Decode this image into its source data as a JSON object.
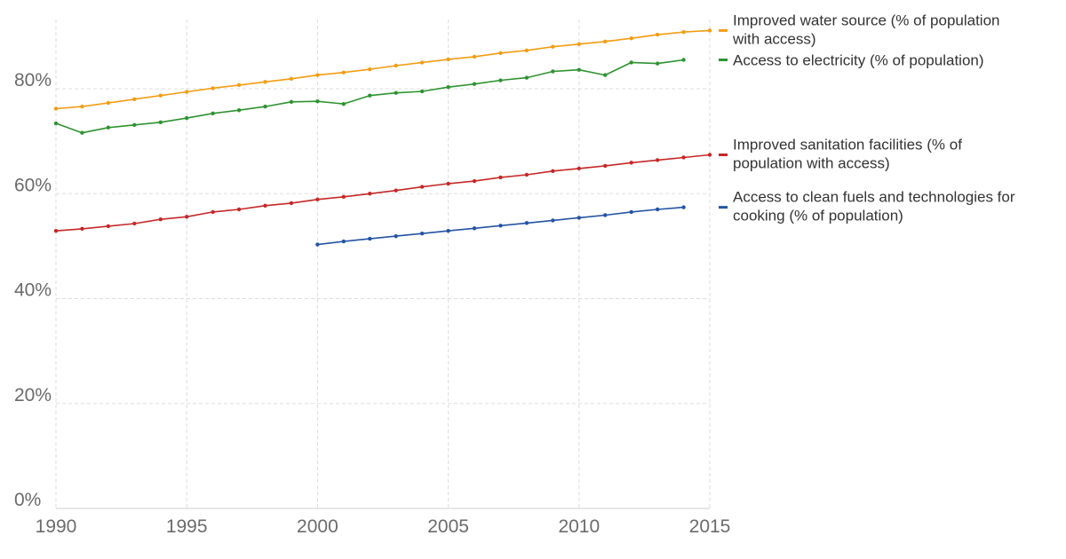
{
  "chart_data": {
    "type": "line",
    "title": "",
    "xlabel": "",
    "ylabel": "",
    "xlim": [
      1990,
      2015
    ],
    "ylim": [
      0,
      90
    ],
    "x_ticks": [
      "1990",
      "1995",
      "2000",
      "2005",
      "2010",
      "2015"
    ],
    "y_ticks": [
      "0%",
      "20%",
      "40%",
      "60%",
      "80%"
    ],
    "grid": true,
    "legend_position": "right",
    "series": [
      {
        "name": "Improved water source (% of population with access)",
        "legend_lines": [
          "Improved water source (% of population",
          "with access)"
        ],
        "color": "#f39c12",
        "x": [
          1990,
          1991,
          1992,
          1993,
          1994,
          1995,
          1996,
          1997,
          1998,
          1999,
          2000,
          2001,
          2002,
          2003,
          2004,
          2005,
          2006,
          2007,
          2008,
          2009,
          2010,
          2011,
          2012,
          2013,
          2014,
          2015
        ],
        "y": [
          76.2,
          76.6,
          77.3,
          78.0,
          78.7,
          79.4,
          80.1,
          80.7,
          81.3,
          81.9,
          82.6,
          83.1,
          83.7,
          84.4,
          85.0,
          85.6,
          86.1,
          86.8,
          87.3,
          88.0,
          88.5,
          89.0,
          89.6,
          90.3,
          90.8,
          91.1
        ]
      },
      {
        "name": "Access to electricity (% of population)",
        "legend_lines": [
          "Access to electricity (% of population)"
        ],
        "color": "#2e9331",
        "x": [
          1990,
          1991,
          1992,
          1993,
          1994,
          1995,
          1996,
          1997,
          1998,
          1999,
          2000,
          2001,
          2002,
          2003,
          2004,
          2005,
          2006,
          2007,
          2008,
          2009,
          2010,
          2011,
          2012,
          2013,
          2014
        ],
        "y": [
          73.4,
          71.6,
          72.6,
          73.1,
          73.6,
          74.4,
          75.3,
          75.9,
          76.6,
          77.5,
          77.6,
          77.1,
          78.7,
          79.2,
          79.5,
          80.3,
          80.9,
          81.6,
          82.1,
          83.3,
          83.6,
          82.6,
          85.0,
          84.8,
          85.5
        ]
      },
      {
        "name": "Improved sanitation facilities (% of population with access)",
        "legend_lines": [
          "Improved sanitation facilities (% of",
          "population with access)"
        ],
        "color": "#c62828",
        "x": [
          1990,
          1991,
          1992,
          1993,
          1994,
          1995,
          1996,
          1997,
          1998,
          1999,
          2000,
          2001,
          2002,
          2003,
          2004,
          2005,
          2006,
          2007,
          2008,
          2009,
          2010,
          2011,
          2012,
          2013,
          2014,
          2015
        ],
        "y": [
          52.9,
          53.3,
          53.8,
          54.3,
          55.1,
          55.6,
          56.5,
          57.0,
          57.7,
          58.2,
          58.9,
          59.4,
          60.0,
          60.6,
          61.3,
          61.9,
          62.4,
          63.1,
          63.6,
          64.3,
          64.8,
          65.3,
          65.9,
          66.4,
          66.9,
          67.4
        ]
      },
      {
        "name": "Access to clean fuels and technologies for cooking (% of population)",
        "legend_lines": [
          "Access to clean fuels and technologies for",
          "cooking (% of population)"
        ],
        "color": "#2453a3",
        "x": [
          2000,
          2001,
          2002,
          2003,
          2004,
          2005,
          2006,
          2007,
          2008,
          2009,
          2010,
          2011,
          2012,
          2013,
          2014
        ],
        "y": [
          50.3,
          50.9,
          51.4,
          51.9,
          52.4,
          52.9,
          53.4,
          53.9,
          54.4,
          54.9,
          55.4,
          55.9,
          56.5,
          57.0,
          57.4
        ]
      }
    ]
  }
}
